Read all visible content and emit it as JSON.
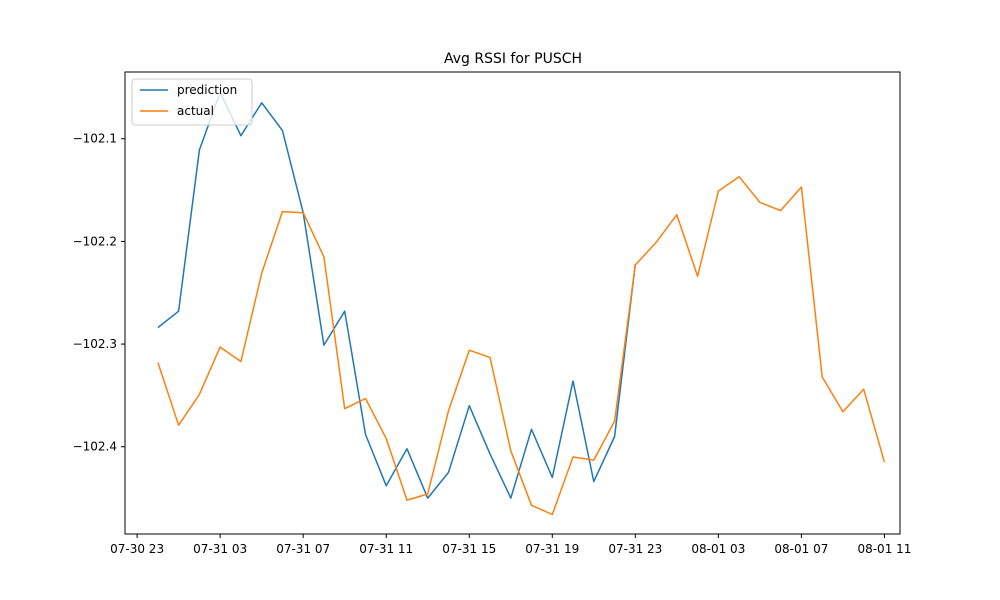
{
  "chart_data": {
    "type": "line",
    "title": "Avg RSSI for PUSCH",
    "xlabel": "",
    "ylabel": "",
    "x_ticks": [
      "07-30 23",
      "07-31 03",
      "07-31 07",
      "07-31 11",
      "07-31 15",
      "07-31 19",
      "07-31 23",
      "08-01 03",
      "08-01 07",
      "08-01 11"
    ],
    "y_ticks": [
      "−102.1",
      "−102.2",
      "−102.3",
      "−102.4"
    ],
    "xlim": [
      "2024-07-30 22:25",
      "2024-08-01 11:45"
    ],
    "ylim": [
      -102.485,
      -102.035
    ],
    "grid": false,
    "legend": {
      "location": "upper left",
      "entries": [
        "prediction",
        "actual"
      ]
    },
    "series": [
      {
        "name": "prediction",
        "color": "#1f77b4",
        "x": [
          "2024-07-31 00:00",
          "2024-07-31 01:00",
          "2024-07-31 02:00",
          "2024-07-31 03:00",
          "2024-07-31 04:00",
          "2024-07-31 05:00",
          "2024-07-31 06:00",
          "2024-07-31 07:00",
          "2024-07-31 08:00",
          "2024-07-31 09:00",
          "2024-07-31 10:00",
          "2024-07-31 11:00",
          "2024-07-31 12:00",
          "2024-07-31 13:00",
          "2024-07-31 14:00",
          "2024-07-31 15:00",
          "2024-07-31 16:00",
          "2024-07-31 17:00",
          "2024-07-31 18:00",
          "2024-07-31 19:00",
          "2024-07-31 20:00",
          "2024-07-31 21:00",
          "2024-07-31 22:00",
          "2024-07-31 23:00"
        ],
        "values": [
          -102.284,
          -102.268,
          -102.111,
          -102.055,
          -102.097,
          -102.065,
          -102.092,
          -102.172,
          -102.301,
          -102.268,
          -102.388,
          -102.438,
          -102.402,
          -102.45,
          -102.425,
          -102.36,
          -102.407,
          -102.45,
          -102.383,
          -102.43,
          -102.336,
          -102.434,
          -102.39,
          -102.222
        ]
      },
      {
        "name": "actual",
        "color": "#ff7f0e",
        "x": [
          "2024-07-31 00:00",
          "2024-07-31 01:00",
          "2024-07-31 02:00",
          "2024-07-31 03:00",
          "2024-07-31 04:00",
          "2024-07-31 05:00",
          "2024-07-31 06:00",
          "2024-07-31 07:00",
          "2024-07-31 08:00",
          "2024-07-31 09:00",
          "2024-07-31 10:00",
          "2024-07-31 11:00",
          "2024-07-31 12:00",
          "2024-07-31 13:00",
          "2024-07-31 14:00",
          "2024-07-31 15:00",
          "2024-07-31 16:00",
          "2024-07-31 17:00",
          "2024-07-31 18:00",
          "2024-07-31 19:00",
          "2024-07-31 20:00",
          "2024-07-31 21:00",
          "2024-07-31 22:00",
          "2024-07-31 23:00",
          "2024-08-01 00:00",
          "2024-08-01 01:00",
          "2024-08-01 02:00",
          "2024-08-01 03:00",
          "2024-08-01 04:00",
          "2024-08-01 05:00",
          "2024-08-01 06:00",
          "2024-08-01 07:00",
          "2024-08-01 08:00",
          "2024-08-01 09:00",
          "2024-08-01 10:00",
          "2024-08-01 11:00"
        ],
        "values": [
          -102.318,
          -102.379,
          -102.349,
          -102.303,
          -102.317,
          -102.231,
          -102.171,
          -102.172,
          -102.215,
          -102.363,
          -102.353,
          -102.392,
          -102.452,
          -102.446,
          -102.365,
          -102.306,
          -102.313,
          -102.404,
          -102.457,
          -102.466,
          -102.41,
          -102.413,
          -102.375,
          -102.223,
          -102.201,
          -102.174,
          -102.234,
          -102.151,
          -102.137,
          -102.162,
          -102.17,
          -102.147,
          -102.332,
          -102.366,
          -102.344,
          -102.415
        ]
      }
    ]
  }
}
